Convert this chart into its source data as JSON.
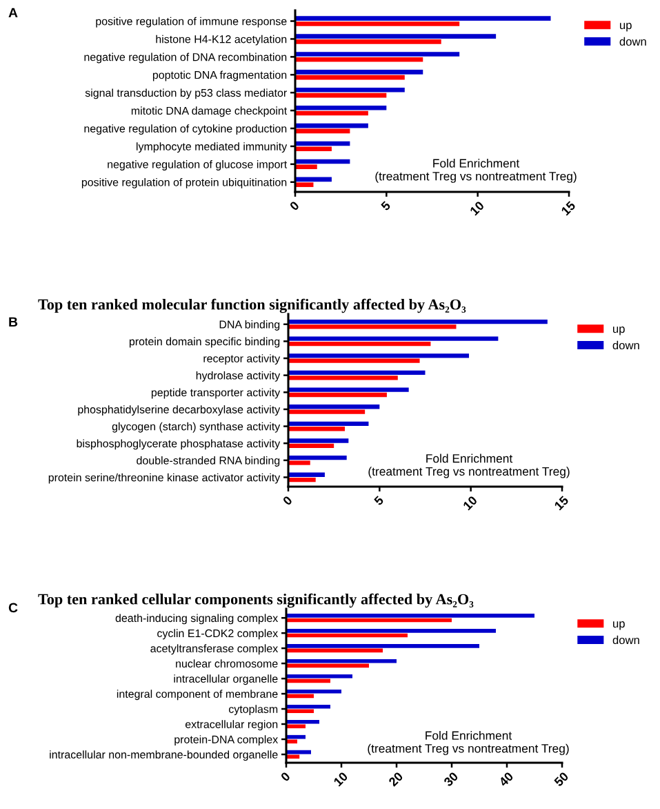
{
  "chart_data": [
    {
      "type": "bar",
      "orientation": "horizontal",
      "annotations": [
        "A"
      ],
      "xlabel": "Fold Enrichment\n(treatment Treg vs nontreatment Treg)",
      "categories": [
        "positive regulation of immune response",
        "histone H4-K12 acetylation",
        "negative regulation of DNA recombination",
        "poptotic DNA fragmentation",
        "signal transduction by p53 class mediator",
        "mitotic DNA damage checkpoint",
        "negative regulation of cytokine production",
        "lymphocyte mediated immunity",
        "negative regulation of glucose import",
        "positive regulation of protein ubiquitination"
      ],
      "series": [
        {
          "name": "up",
          "color": "#ff0000",
          "values": [
            9,
            8,
            7,
            6,
            5,
            4,
            3,
            2,
            1.2,
            1.0
          ]
        },
        {
          "name": "down",
          "color": "#0000cc",
          "values": [
            14,
            11,
            9,
            7,
            6,
            5,
            4,
            3,
            3,
            2
          ]
        }
      ],
      "xlim": [
        0,
        15
      ],
      "xticks": [
        0,
        5,
        10,
        15
      ],
      "legend": "top right",
      "grid": false
    },
    {
      "type": "bar",
      "orientation": "horizontal",
      "annotations": [
        "B"
      ],
      "title": "Top ten ranked molecular function significantly affected by As₂O₃",
      "xlabel": "Fold Enrichment\n(treatment Treg vs nontreatment Treg)",
      "categories": [
        "DNA binding",
        "protein domain specific binding",
        "receptor activity",
        "hydrolase activity",
        "peptide transporter activity",
        "phosphatidylserine decarboxylase activity",
        "glycogen (starch) synthase activity",
        "bisphosphoglycerate phosphatase activity",
        "double-stranded RNA binding",
        "protein serine/threonine kinase activator activity"
      ],
      "series": [
        {
          "name": "up",
          "color": "#ff0000",
          "values": [
            9.2,
            7.8,
            7.2,
            6.0,
            5.4,
            4.2,
            3.1,
            2.5,
            1.2,
            1.5
          ]
        },
        {
          "name": "down",
          "color": "#0000cc",
          "values": [
            14.2,
            11.5,
            9.9,
            7.5,
            6.6,
            5.0,
            4.4,
            3.3,
            3.2,
            2.0
          ]
        }
      ],
      "xlim": [
        0,
        15
      ],
      "xticks": [
        0,
        5,
        10,
        15
      ],
      "legend": "top right",
      "grid": false
    },
    {
      "type": "bar",
      "orientation": "horizontal",
      "annotations": [
        "C"
      ],
      "title": "Top ten ranked cellular components significantly affected by As₂O₃",
      "xlabel": "Fold Enrichment\n(treatment Treg vs nontreatment Treg)",
      "categories": [
        "death-inducing signaling complex",
        "cyclin E1-CDK2 complex",
        "acetyltransferase complex",
        "nuclear chromosome",
        "intracellular organelle",
        "integral component of membrane",
        "cytoplasm",
        "extracellular region",
        "protein-DNA complex",
        "intracellular non-membrane-bounded organelle"
      ],
      "series": [
        {
          "name": "up",
          "color": "#ff0000",
          "values": [
            30,
            22,
            17.5,
            15,
            8,
            5,
            5,
            3.5,
            2,
            2.4
          ]
        },
        {
          "name": "down",
          "color": "#0000cc",
          "values": [
            45,
            38,
            35,
            20,
            12,
            10,
            8,
            6,
            3.5,
            4.5
          ]
        }
      ],
      "xlim": [
        0,
        50
      ],
      "xticks": [
        0,
        10,
        20,
        30,
        40,
        50
      ],
      "legend": "top right",
      "grid": false
    }
  ]
}
